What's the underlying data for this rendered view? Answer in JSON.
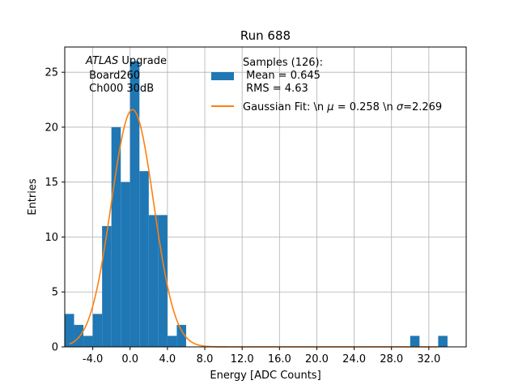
{
  "chart_data": {
    "type": "histogram",
    "title": "Run 688",
    "xlabel": "Energy [ADC Counts]",
    "ylabel": "Entries",
    "xlim": [
      -7.0,
      36.0
    ],
    "ylim": [
      0,
      27.3
    ],
    "grid": true,
    "x_ticks": [
      -4.0,
      0.0,
      4.0,
      8.0,
      12.0,
      16.0,
      20.0,
      24.0,
      28.0,
      32.0
    ],
    "x_tick_labels": [
      "-4.0",
      "0.0",
      "4.0",
      "8.0",
      "12.0",
      "16.0",
      "20.0",
      "24.0",
      "28.0",
      "32.0"
    ],
    "y_ticks": [
      0,
      5,
      10,
      15,
      20,
      25
    ],
    "y_tick_labels": [
      "0",
      "5",
      "10",
      "15",
      "20",
      "25"
    ],
    "bin_width": 1.0,
    "bins": [
      {
        "x0": -7.0,
        "count": 3
      },
      {
        "x0": -6.0,
        "count": 2
      },
      {
        "x0": -5.0,
        "count": 1
      },
      {
        "x0": -4.0,
        "count": 3
      },
      {
        "x0": -3.0,
        "count": 11
      },
      {
        "x0": -2.0,
        "count": 20
      },
      {
        "x0": -1.0,
        "count": 15
      },
      {
        "x0": 0.0,
        "count": 26
      },
      {
        "x0": 1.0,
        "count": 16
      },
      {
        "x0": 2.0,
        "count": 12
      },
      {
        "x0": 3.0,
        "count": 12
      },
      {
        "x0": 4.0,
        "count": 1
      },
      {
        "x0": 5.0,
        "count": 2
      },
      {
        "x0": 30.0,
        "count": 1
      },
      {
        "x0": 33.0,
        "count": 1
      }
    ],
    "fit": {
      "type": "gaussian",
      "mu": 0.258,
      "sigma": 2.269,
      "amplitude": 21.6
    },
    "colors": {
      "hist": "#1f77b4",
      "fit": "#ff7f0e",
      "grid": "#b0b0b0",
      "axes": "#000000"
    },
    "legend": {
      "placement": "top-right",
      "entries": [
        {
          "type": "patch",
          "lines": [
            "Samples (126):",
            " Mean = 0.645",
            " RMS = 4.63"
          ]
        },
        {
          "type": "line",
          "label_prefix": "Gaussian Fit: \\n ",
          "mu_symbol": "μ",
          "mu_text": " = 0.258 \\n ",
          "sigma_symbol": "σ",
          "sigma_text": "=2.269"
        }
      ]
    },
    "annotation": {
      "placement": "top-left",
      "italic_word": "ATLAS",
      "line1_rest": " Upgrade",
      "line2": " Board260",
      "line3": " Ch000 30dB"
    }
  }
}
